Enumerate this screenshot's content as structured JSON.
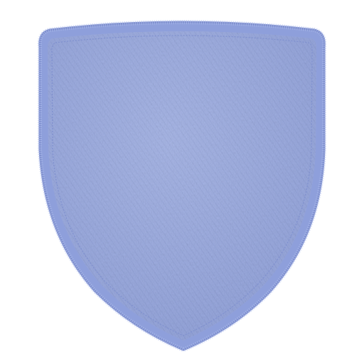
{
  "image": {
    "subject": "shield-patch",
    "background_color": "#ffffff",
    "patch": {
      "fill_color": "#9eaee3",
      "fill_dark": "#8797d2",
      "fill_light": "#b1bfee",
      "border_color": "#8e9fdb",
      "border_stitch_color": "#7c8dcc",
      "inner_stitch_color": "#7f90cf",
      "texture": "embroidered"
    }
  }
}
